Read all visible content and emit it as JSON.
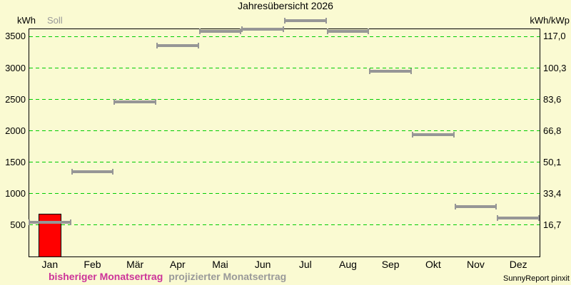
{
  "window": {
    "bg_color": "#FAFAD2"
  },
  "header": {
    "title": "Jahresübersicht 2026"
  },
  "axes": {
    "left_unit": "kWh",
    "soll_label": "Soll",
    "right_unit": "kWh/kWp"
  },
  "legend": [
    {
      "label": "bisheriger Monatsertrag",
      "color": "#CC3399"
    },
    {
      "label": "projizierter Monatsertrag",
      "color": "#999999"
    }
  ],
  "footer": {
    "credit": "SunnyReport pinxit"
  },
  "chart_data": {
    "type": "bar",
    "title": "Jahresübersicht 2026",
    "categories": [
      "Jan",
      "Feb",
      "Mär",
      "Apr",
      "Mai",
      "Jun",
      "Jul",
      "Aug",
      "Sep",
      "Okt",
      "Nov",
      "Dez"
    ],
    "series": [
      {
        "name": "bisheriger Monatsertrag",
        "style": "bar",
        "color": "#FF0000",
        "values": [
          680,
          null,
          null,
          null,
          null,
          null,
          null,
          null,
          null,
          null,
          null,
          null
        ]
      },
      {
        "name": "projizierter Monatsertrag",
        "style": "target-segment",
        "color": "#969696",
        "values": [
          550,
          1350,
          2460,
          3360,
          3590,
          3620,
          3750,
          3590,
          2950,
          1940,
          790,
          610
        ]
      }
    ],
    "ylabel_left": "kWh",
    "ylabel_right": "kWh/kWp",
    "ylim": [
      0,
      3630
    ],
    "yticks_left": {
      "values": [
        500,
        1000,
        1500,
        2000,
        2500,
        3000,
        3500
      ],
      "labels": [
        "500",
        "1000",
        "1500",
        "2000",
        "2500",
        "3000",
        "3500"
      ]
    },
    "yticks_right": {
      "labels": [
        "16,7",
        "33,4",
        "50,1",
        "66,8",
        "83,6",
        "100,3",
        "117,0"
      ]
    },
    "grid": {
      "axis": "y",
      "style": "dashed",
      "color": "#00CC00"
    },
    "legend_position": "bottom-left"
  }
}
